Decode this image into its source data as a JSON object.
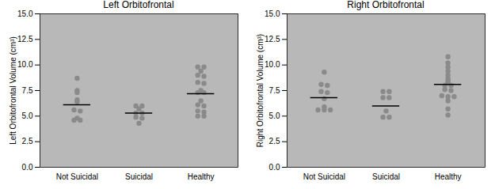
{
  "chart_data": [
    {
      "type": "scatter",
      "title": "Left Orbitofrontal",
      "y_label": "Left Orbitofrontal Volume (cm³)",
      "categories": [
        "Not Suicidal",
        "Suicidal",
        "Healthy"
      ],
      "values": [
        [
          8.7,
          7.5,
          7.3,
          6.6,
          6.4,
          5.6,
          5.5,
          4.8,
          4.6,
          4.6
        ],
        [
          6.0,
          6.0,
          5.7,
          5.3,
          5.3,
          4.9,
          4.8,
          4.3
        ],
        [
          9.8,
          9.8,
          9.4,
          9.0,
          8.9,
          8.3,
          8.2,
          7.5,
          7.3,
          7.3,
          6.5,
          6.1,
          6.0,
          5.5,
          5.4,
          5.0,
          5.0
        ]
      ],
      "means": [
        6.1,
        5.3,
        7.2
      ],
      "color": "#8a8a8a",
      "ylim": [
        0,
        15
      ],
      "yticks": [
        {
          "value": 0,
          "label": "0.0"
        },
        {
          "value": 2.5,
          "label": "2.5"
        },
        {
          "value": 5,
          "label": "5.0"
        },
        {
          "value": 7.5,
          "label": "7.5"
        },
        {
          "value": 10,
          "label": "10.0"
        },
        {
          "value": 12.5,
          "label": "12.5"
        },
        {
          "value": 15,
          "label": "15.0"
        }
      ]
    },
    {
      "type": "scatter",
      "title": "Right Orbitofrontal",
      "y_label": "Right Orbitofrontal Volume (cm³)",
      "categories": [
        "Not Suicidal",
        "Suicidal",
        "Healthy"
      ],
      "values": [
        [
          9.3,
          8.1,
          8.0,
          7.4,
          7.3,
          6.7,
          5.9,
          5.6,
          5.6,
          5.6
        ],
        [
          7.4,
          7.4,
          6.8,
          6.8,
          5.5,
          4.9,
          4.9
        ],
        [
          10.8,
          10.2,
          9.8,
          9.4,
          9.0,
          8.7,
          8.5,
          8.3,
          8.0,
          8.0,
          7.6,
          7.5,
          7.0,
          6.9,
          6.9,
          6.5,
          5.7,
          5.1
        ]
      ],
      "means": [
        6.8,
        6.0,
        8.1
      ],
      "color": "#8a8a8a",
      "ylim": [
        0,
        15
      ],
      "yticks": [
        {
          "value": 0,
          "label": "0.0"
        },
        {
          "value": 2.5,
          "label": "2.5"
        },
        {
          "value": 5,
          "label": "5.0"
        },
        {
          "value": 7.5,
          "label": "7.5"
        },
        {
          "value": 10,
          "label": "10.0"
        },
        {
          "value": 12.5,
          "label": "12.5"
        },
        {
          "value": 15,
          "label": "15.0"
        }
      ]
    }
  ]
}
